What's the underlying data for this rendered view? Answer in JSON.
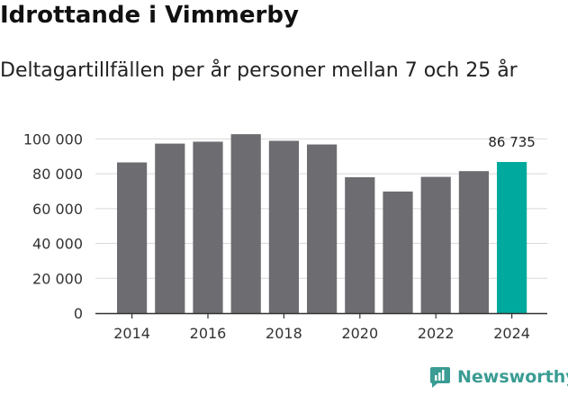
{
  "title": "Idrottande i Vimmerby",
  "subtitle": "Deltagartillfällen per år personer mellan 7 och 25 år",
  "brand": {
    "name": "Newsworthy",
    "icon": "newsworthy-logo-icon",
    "color": "#3a9c93"
  },
  "chart_data": {
    "type": "bar",
    "categories": [
      "2014",
      "2015",
      "2016",
      "2017",
      "2018",
      "2019",
      "2020",
      "2021",
      "2022",
      "2023",
      "2024"
    ],
    "values": [
      86500,
      97300,
      98400,
      102700,
      98900,
      96800,
      78000,
      69800,
      78200,
      81500,
      86735
    ],
    "highlight_index": 10,
    "highlight_label": "86 735",
    "ylim": [
      0,
      110000
    ],
    "yticks": [
      0,
      20000,
      40000,
      60000,
      80000,
      100000
    ],
    "ytick_labels": [
      "0",
      "20 000",
      "40 000",
      "60 000",
      "80 000",
      "100 000"
    ],
    "xtick_labels": [
      "2014",
      "2016",
      "2018",
      "2020",
      "2022",
      "2024"
    ],
    "xtick_indices": [
      0,
      2,
      4,
      6,
      8,
      10
    ],
    "colors": {
      "bar": "#6d6c70",
      "highlight": "#00a99d",
      "grid": "#d9d9d9",
      "axis": "#333333"
    },
    "grid": true,
    "xlabel": "",
    "ylabel": ""
  }
}
